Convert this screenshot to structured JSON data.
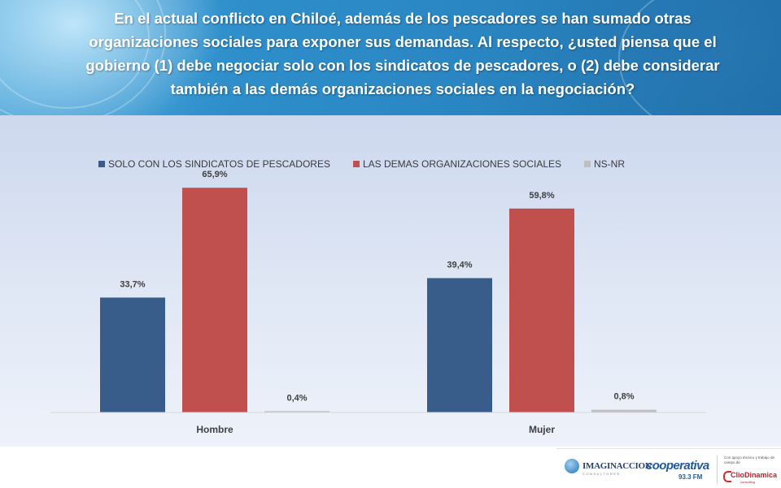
{
  "header": {
    "title": "En el actual conflicto en Chiloé, además de los pescadores se han sumado otras organizaciones sociales para exponer sus demandas.   Al respecto, ¿usted piensa que el gobierno (1) debe negociar solo con los sindicatos de pescadores, o (2) debe considerar también a las demás organizaciones sociales en la negociación?"
  },
  "chart_data": {
    "type": "bar",
    "categories": [
      "Hombre",
      "Mujer"
    ],
    "series": [
      {
        "name": "SOLO CON LOS SINDICATOS DE PESCADORES",
        "values": [
          33.7,
          39.4
        ],
        "labels": [
          "33,7%",
          "39,4%"
        ],
        "color": "#385d8a"
      },
      {
        "name": "LAS DEMAS ORGANIZACIONES SOCIALES",
        "values": [
          65.9,
          59.8
        ],
        "labels": [
          "65,9%",
          "59,8%"
        ],
        "color": "#c0504d"
      },
      {
        "name": "NS-NR",
        "values": [
          0.4,
          0.8
        ],
        "labels": [
          "0,4%",
          "0,8%"
        ],
        "color": "#bfbfbf"
      }
    ],
    "ylim": [
      0,
      70
    ],
    "legend_position": "top",
    "grid": false
  },
  "logos": {
    "imaginaccion": "IMAGINACCION",
    "imaginaccion_sub": "CONSULTORES",
    "cooperativa": "cooperativa",
    "cooperativa_fm": "93.3 FM",
    "apoyo": "Con apoyo técnico y trabajo de campo de",
    "clio": "ClioDinamica",
    "clio_sub": "consulting"
  }
}
